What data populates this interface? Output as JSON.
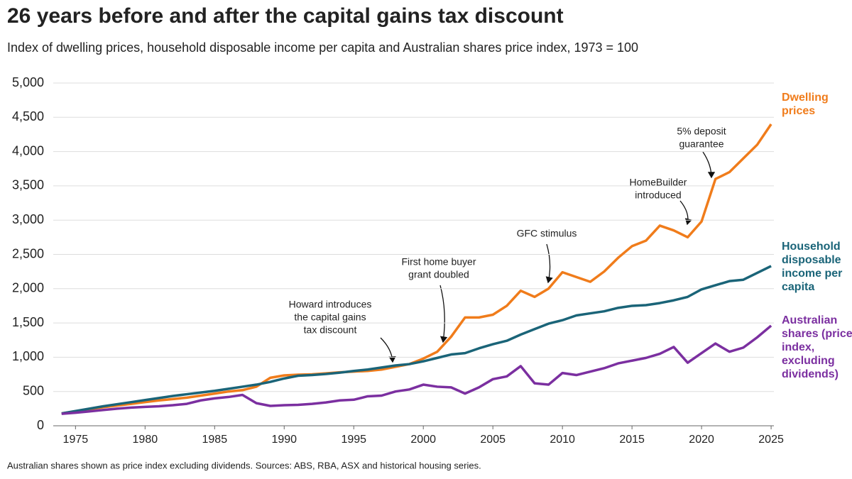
{
  "chart_data": {
    "type": "line",
    "title": "26 years before and after the capital gains tax discount",
    "subtitle": "Index of dwelling prices, household disposable income per capita and Australian shares price index, 1973 = 100",
    "footnote": "Australian shares shown as price index excluding dividends. Sources: ABS, RBA, ASX and historical housing series.",
    "x": [
      1974,
      1975,
      1976,
      1977,
      1978,
      1979,
      1980,
      1981,
      1982,
      1983,
      1984,
      1985,
      1986,
      1987,
      1988,
      1989,
      1990,
      1991,
      1992,
      1993,
      1994,
      1995,
      1996,
      1997,
      1998,
      1999,
      2000,
      2001,
      2002,
      2003,
      2004,
      2005,
      2006,
      2007,
      2008,
      2009,
      2010,
      2011,
      2012,
      2013,
      2014,
      2015,
      2016,
      2017,
      2018,
      2019,
      2020,
      2021,
      2022,
      2023,
      2024,
      2025
    ],
    "series": [
      {
        "name": "Dwelling prices",
        "color": "#f07c1b",
        "values": [
          180,
          210,
          240,
          270,
          295,
          320,
          345,
          370,
          390,
          410,
          440,
          470,
          500,
          520,
          570,
          700,
          735,
          745,
          750,
          765,
          780,
          790,
          800,
          820,
          860,
          900,
          980,
          1080,
          1300,
          1580,
          1580,
          1620,
          1750,
          1970,
          1880,
          2000,
          2240,
          2170,
          2100,
          2250,
          2450,
          2620,
          2700,
          2920,
          2850,
          2750,
          2980,
          3600,
          3700,
          3900,
          4100,
          4400
        ]
      },
      {
        "name": "Household disposable income per capita",
        "color": "#1a6478",
        "values": [
          180,
          215,
          250,
          285,
          315,
          345,
          375,
          405,
          435,
          460,
          485,
          510,
          540,
          570,
          600,
          640,
          690,
          730,
          740,
          755,
          775,
          800,
          820,
          850,
          880,
          900,
          940,
          990,
          1040,
          1060,
          1130,
          1190,
          1240,
          1330,
          1410,
          1490,
          1540,
          1610,
          1640,
          1670,
          1720,
          1750,
          1760,
          1790,
          1830,
          1880,
          1990,
          2050,
          2110,
          2130,
          2230,
          2330
        ]
      },
      {
        "name": "Australian shares (price index, excluding dividends)",
        "color": "#7b2fa0",
        "values": [
          175,
          190,
          210,
          230,
          250,
          265,
          275,
          285,
          300,
          320,
          370,
          400,
          420,
          450,
          330,
          290,
          300,
          305,
          320,
          340,
          370,
          380,
          430,
          440,
          500,
          530,
          600,
          570,
          560,
          470,
          560,
          680,
          720,
          870,
          620,
          600,
          770,
          740,
          790,
          840,
          910,
          950,
          990,
          1050,
          1150,
          920,
          1060,
          1200,
          1080,
          1140,
          1290,
          1460
        ]
      }
    ],
    "xlim": [
      1973.4,
      2025.2
    ],
    "xticks": [
      1975,
      1980,
      1985,
      1990,
      1995,
      2000,
      2005,
      2010,
      2015,
      2020,
      2025
    ],
    "ylim": [
      0,
      5000
    ],
    "yticks": [
      0,
      500,
      {
        "value": 1000,
        "label": "1,000"
      },
      {
        "value": 1500,
        "label": "1,500"
      },
      {
        "value": 2000,
        "label": "2,000"
      },
      {
        "value": 2500,
        "label": "2,500"
      },
      {
        "value": 3000,
        "label": "3,000"
      },
      {
        "value": 3500,
        "label": "3,500"
      },
      {
        "value": 4000,
        "label": "4,000"
      },
      {
        "value": 4500,
        "label": "4,500"
      },
      {
        "value": 5000,
        "label": "5,000"
      }
    ],
    "grid": true,
    "annotations": [
      {
        "lines": [
          "Howard introduces",
          "the capital gains",
          "tax discount"
        ]
      },
      {
        "lines": [
          "First home buyer",
          "grant doubled"
        ]
      },
      {
        "lines": [
          "GFC stimulus"
        ]
      },
      {
        "lines": [
          "HomeBuilder",
          "introduced"
        ]
      },
      {
        "lines": [
          "5% deposit",
          "guarantee"
        ]
      }
    ]
  }
}
